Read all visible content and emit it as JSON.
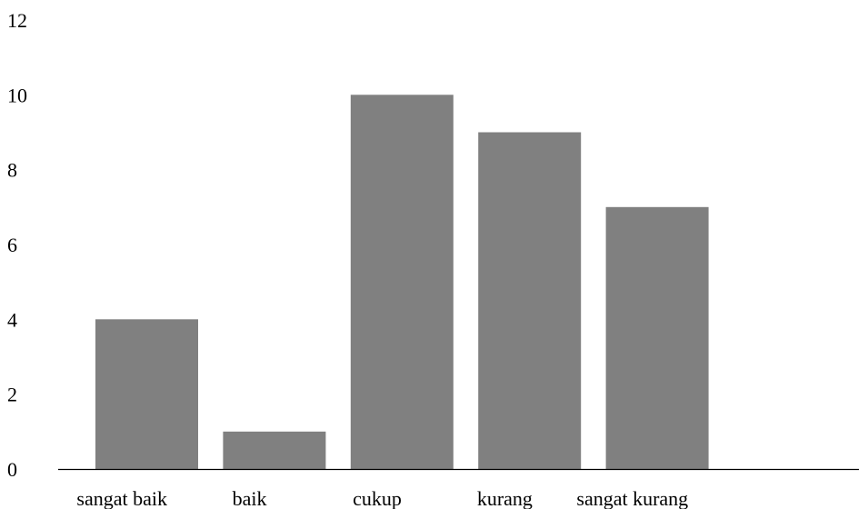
{
  "chart_data": {
    "type": "bar",
    "categories": [
      "sangat baik",
      "baik",
      "cukup",
      "kurang",
      "sangat kurang"
    ],
    "values": [
      4,
      1,
      10,
      9,
      7
    ],
    "title": "",
    "xlabel": "",
    "ylabel": "",
    "ylim": [
      0,
      12
    ],
    "yticks": [
      "0",
      "2",
      "4",
      "6",
      "8",
      "10",
      "12"
    ],
    "grid": false,
    "legend": "none",
    "colors": {
      "bar": "#808080",
      "axis": "#000000",
      "text": "#000000"
    }
  }
}
